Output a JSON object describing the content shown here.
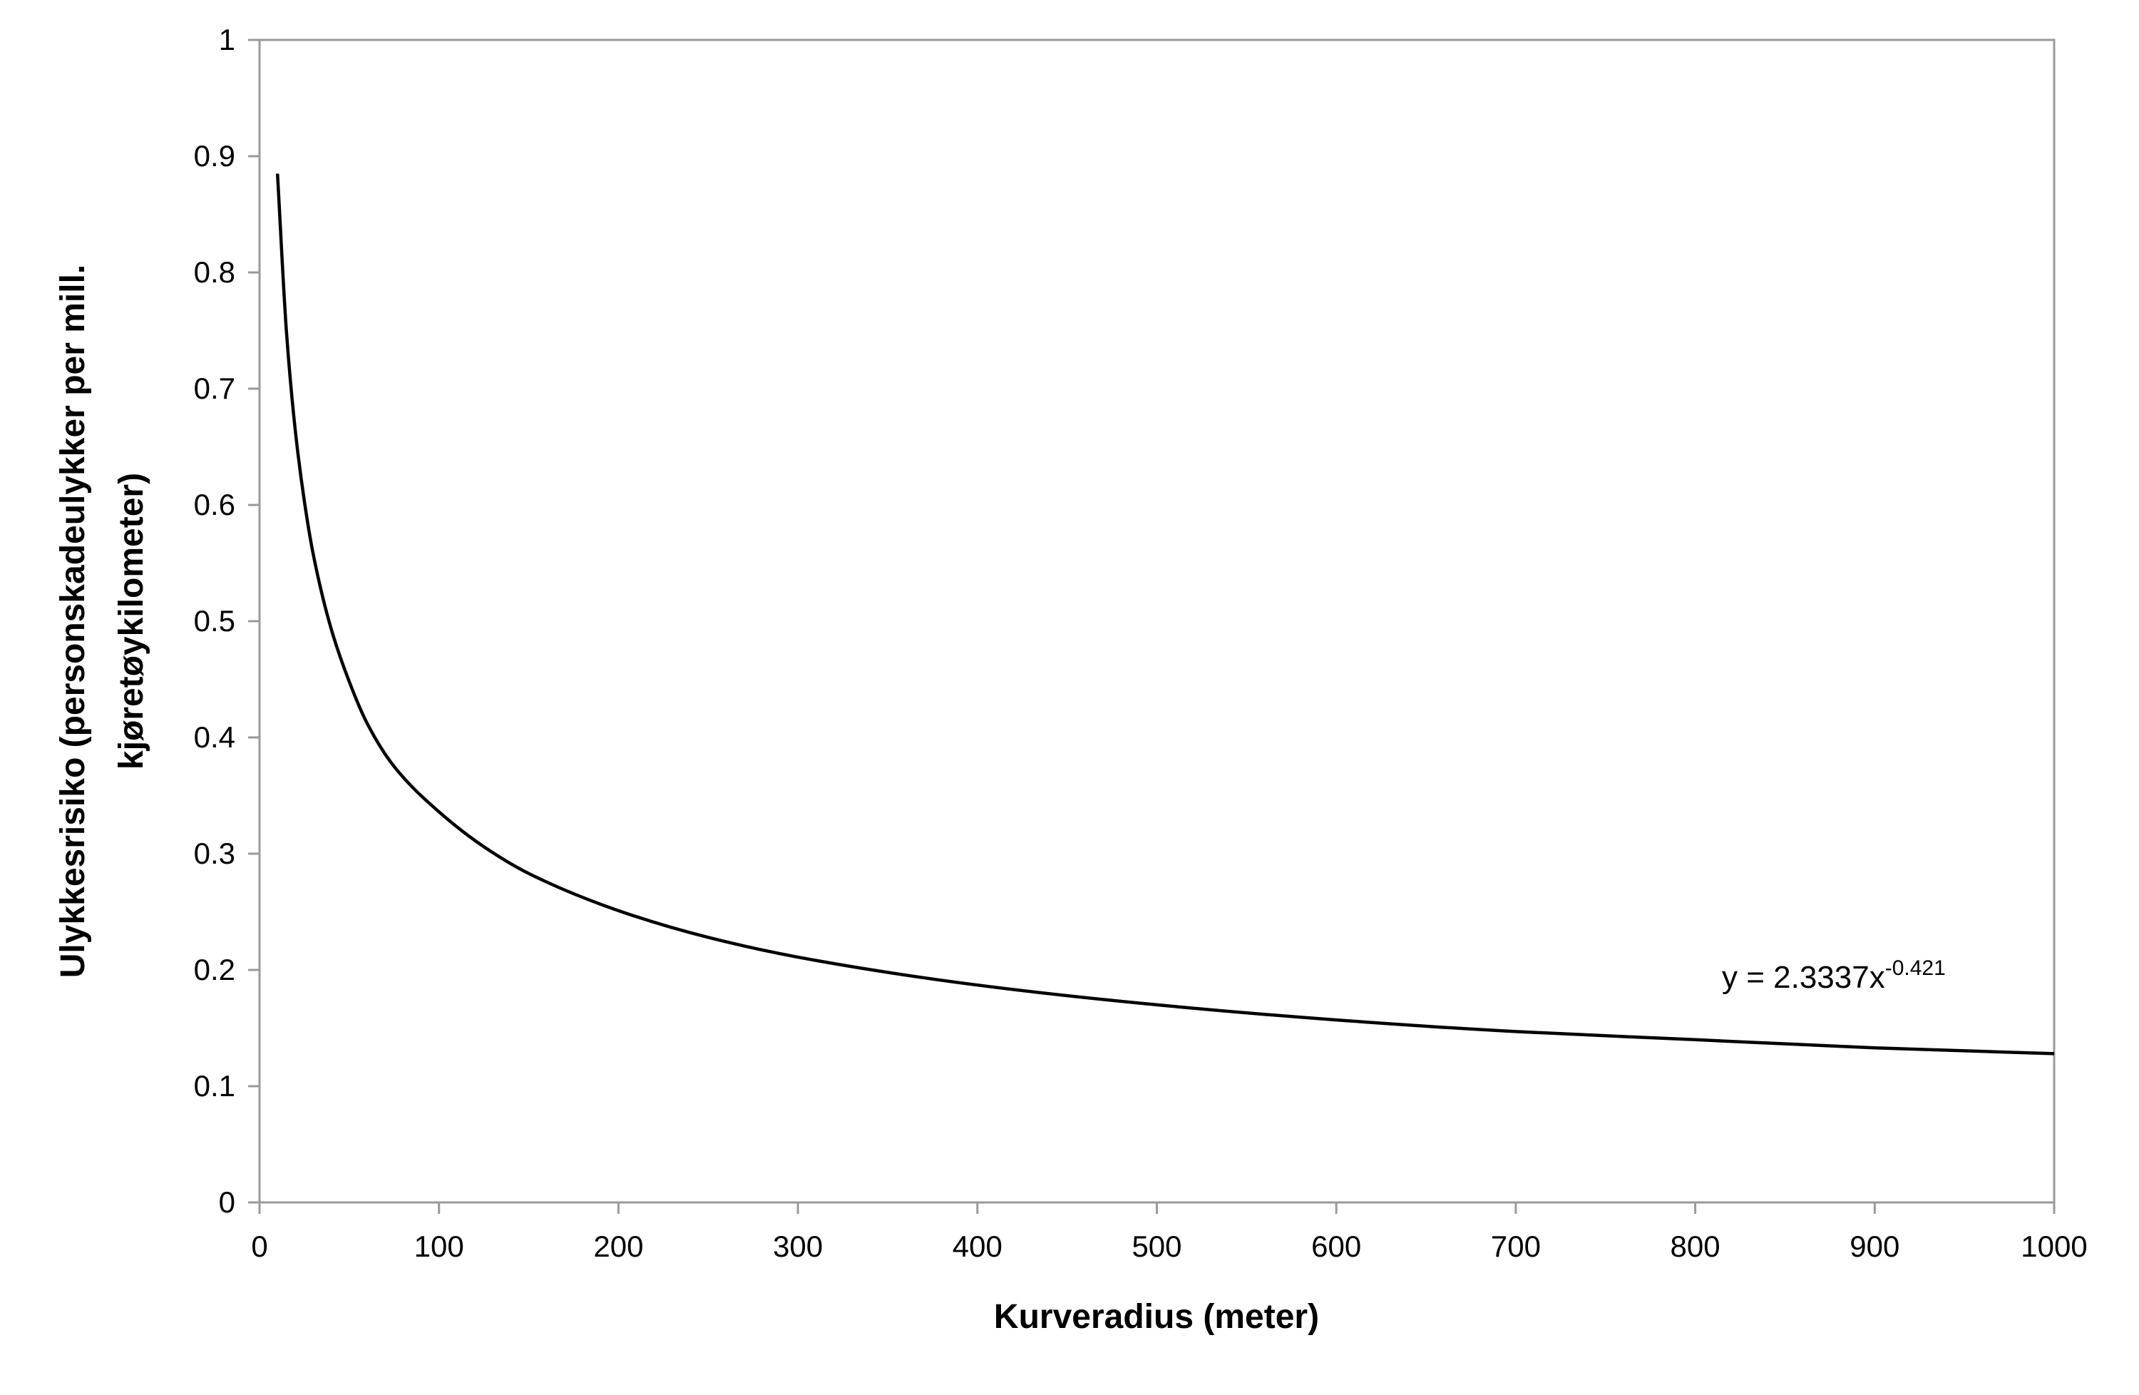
{
  "chart_data": {
    "type": "line",
    "xlabel": "Kurveradius (meter)",
    "ylabel_lines": [
      "Ulykkesrisiko (personskadeulykker per mill.",
      "kjøretøykilometer)"
    ],
    "xlim": [
      0,
      1000
    ],
    "ylim": [
      0,
      1
    ],
    "x_ticks": [
      0,
      100,
      200,
      300,
      400,
      500,
      600,
      700,
      800,
      900,
      1000
    ],
    "y_ticks": [
      0,
      0.1,
      0.2,
      0.3,
      0.4,
      0.5,
      0.6,
      0.7,
      0.8,
      0.9,
      1
    ],
    "x_tick_labels": [
      "0",
      "100",
      "200",
      "300",
      "400",
      "500",
      "600",
      "700",
      "800",
      "900",
      "1000"
    ],
    "y_tick_labels": [
      "0",
      "0.1",
      "0.2",
      "0.3",
      "0.4",
      "0.5",
      "0.6",
      "0.7",
      "0.8",
      "0.9",
      "1"
    ],
    "grid": false,
    "series": [
      {
        "x": [
          10,
          15,
          20,
          25,
          30,
          40,
          50,
          60,
          75,
          100,
          125,
          150,
          200,
          250,
          300,
          400,
          500,
          600,
          700,
          800,
          900,
          1000
        ],
        "y": [
          0.885,
          0.749,
          0.663,
          0.603,
          0.557,
          0.493,
          0.448,
          0.412,
          0.375,
          0.336,
          0.306,
          0.283,
          0.251,
          0.228,
          0.211,
          0.187,
          0.17,
          0.157,
          0.147,
          0.14,
          0.133,
          0.128
        ],
        "color": "#000000"
      }
    ],
    "annotation": {
      "text": "y = 2.3337x",
      "exponent": "-0.421"
    }
  }
}
